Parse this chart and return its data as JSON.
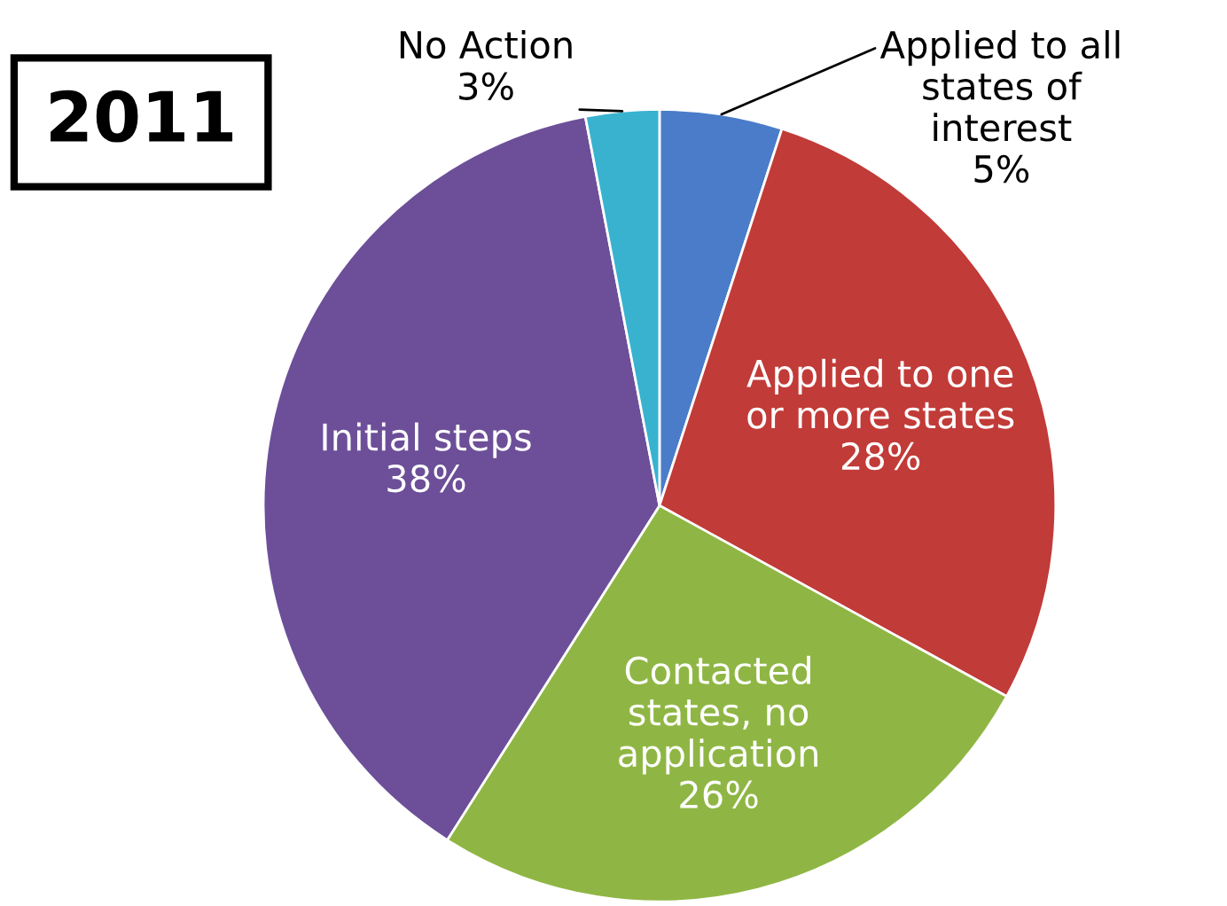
{
  "chart_data": {
    "type": "pie",
    "title": "2011",
    "categories": [
      "Applied to all\nstates of\ninterest",
      "Applied to one\nor more states",
      "Contacted\nstates, no\napplication",
      "Initial steps",
      "No Action"
    ],
    "values": [
      5,
      28,
      26,
      38,
      3
    ],
    "colors": [
      "#4a7cc9",
      "#c13b38",
      "#8fb644",
      "#6c4f98",
      "#38b2cf"
    ],
    "value_labels": [
      "5%",
      "28%",
      "26%",
      "38%",
      "3%"
    ]
  }
}
